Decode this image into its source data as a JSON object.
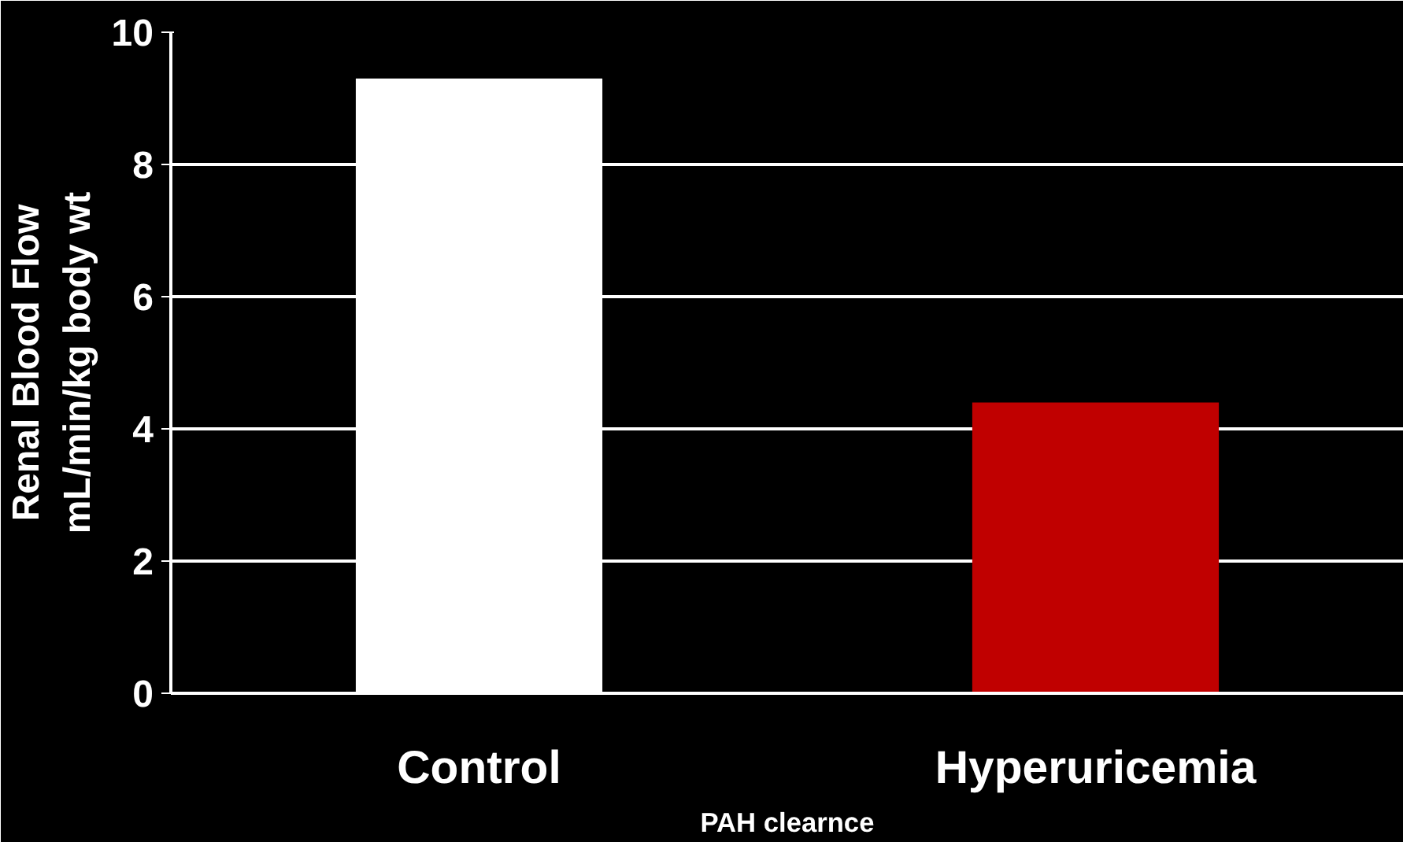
{
  "chart_data": {
    "type": "bar",
    "ylabel": "Renal Blood Flow\nmL/min/kg body wt",
    "xlabel": "PAH clearnce",
    "categories": [
      "Control",
      "Hyperuricemia"
    ],
    "values": [
      9.3,
      4.4
    ],
    "colors": [
      "#ffffff",
      "#c00000"
    ],
    "ylim": [
      0,
      10
    ],
    "yticks": [
      0,
      2,
      4,
      6,
      8,
      10
    ],
    "grid": "y"
  }
}
